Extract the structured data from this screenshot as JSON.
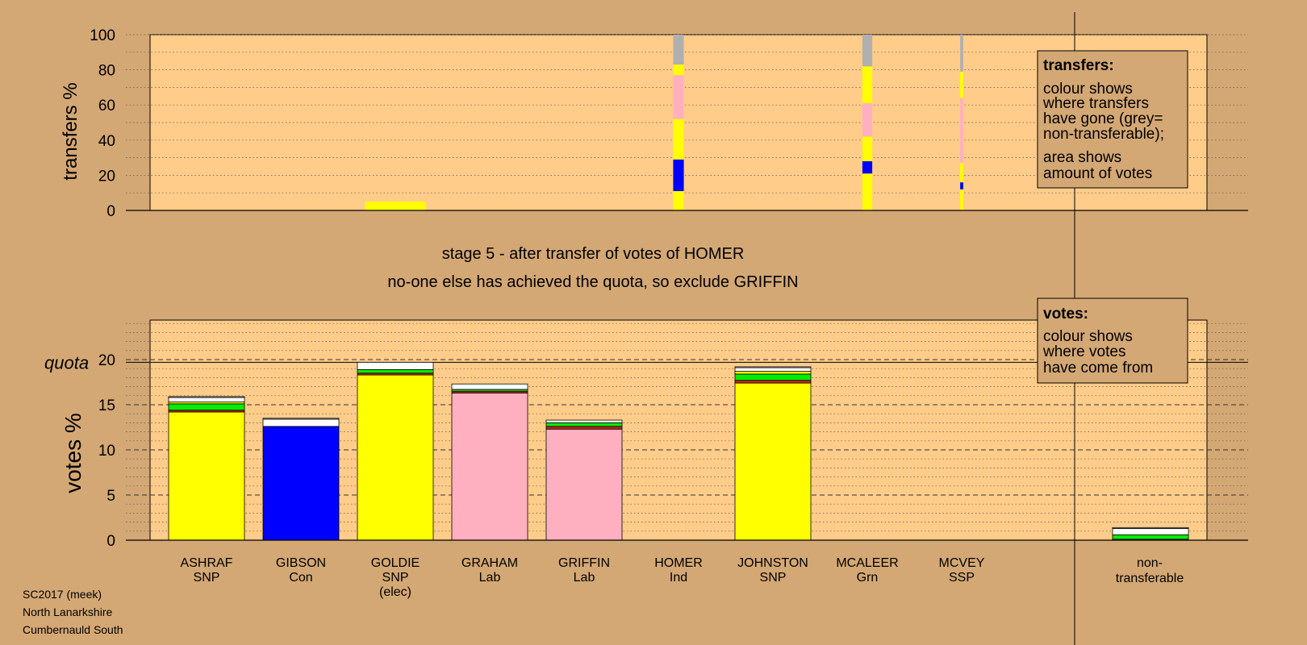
{
  "top_chart": {
    "ylabel": "transfers %",
    "ticks": [
      "0",
      "20",
      "40",
      "60",
      "80",
      "100"
    ],
    "legend": {
      "title": "transfers:",
      "lines1": [
        "colour shows",
        "where transfers",
        "have gone (grey=",
        "non-transferable);"
      ],
      "lines2": [
        "area shows",
        "amount of votes"
      ]
    }
  },
  "stage": {
    "line1": "stage 5 - after transfer of votes of HOMER",
    "line2": "no-one else has achieved the quota, so exclude GRIFFIN"
  },
  "bottom_chart": {
    "ylabel": "votes %",
    "quota_label": "quota",
    "ticks": [
      "0",
      "5",
      "10",
      "15",
      "20"
    ],
    "legend": {
      "title": "votes:",
      "lines": [
        "colour shows",
        "where votes",
        "have come from"
      ]
    }
  },
  "candidates": [
    {
      "name": "ASHRAF",
      "party": "SNP",
      "extra": ""
    },
    {
      "name": "GIBSON",
      "party": "Con",
      "extra": ""
    },
    {
      "name": "GOLDIE",
      "party": "SNP",
      "extra": "(elec)"
    },
    {
      "name": "GRAHAM",
      "party": "Lab",
      "extra": ""
    },
    {
      "name": "GRIFFIN",
      "party": "Lab",
      "extra": ""
    },
    {
      "name": "HOMER",
      "party": "Ind",
      "extra": ""
    },
    {
      "name": "JOHNSTON",
      "party": "SNP",
      "extra": ""
    },
    {
      "name": "MCALEER",
      "party": "Grn",
      "extra": ""
    },
    {
      "name": "MCVEY",
      "party": "SSP",
      "extra": ""
    }
  ],
  "nontransferable_label": [
    "non-",
    "transferable"
  ],
  "footer": [
    "SC2017 (meek)",
    "North Lanarkshire",
    "Cumbernauld South"
  ],
  "colors": {
    "background": "#d4a874",
    "plot": "#ffcc8a",
    "SNP": "#ffff00",
    "Con": "#0000ff",
    "Lab": "#ffb0c0",
    "Grn": "#00ee00",
    "Ind": "#d02020",
    "SSP": "#ffffff",
    "nontransferable": "#b0b0b0",
    "later": "#ffffff"
  },
  "chart_data": [
    {
      "type": "bar",
      "title": "",
      "ylabel": "transfers %",
      "ylim": [
        0,
        100
      ],
      "note": "stacked transfer bars; bar width proportional to votes transferred",
      "bars": [
        {
          "candidate": "GOLDIE",
          "width_rel": 0.8,
          "segments": [
            {
              "to": "SNP",
              "from": 0,
              "to_value": 5
            }
          ]
        },
        {
          "candidate": "HOMER",
          "width_rel": 0.14,
          "segments": [
            {
              "to": "SNP",
              "from": 0,
              "to_value": 11
            },
            {
              "to": "Con",
              "from": 11,
              "to_value": 29
            },
            {
              "to": "SNP",
              "from": 29,
              "to_value": 52
            },
            {
              "to": "Lab",
              "from": 52,
              "to_value": 77
            },
            {
              "to": "SNP",
              "from": 77,
              "to_value": 83
            },
            {
              "to": "nontransferable",
              "from": 83,
              "to_value": 100
            }
          ]
        },
        {
          "candidate": "MCALEER",
          "width_rel": 0.13,
          "segments": [
            {
              "to": "SNP",
              "from": 0,
              "to_value": 21
            },
            {
              "to": "Con",
              "from": 21,
              "to_value": 28
            },
            {
              "to": "SNP",
              "from": 28,
              "to_value": 42
            },
            {
              "to": "Lab",
              "from": 42,
              "to_value": 61
            },
            {
              "to": "SNP",
              "from": 61,
              "to_value": 82
            },
            {
              "to": "nontransferable",
              "from": 82,
              "to_value": 100
            }
          ]
        },
        {
          "candidate": "MCVEY",
          "width_rel": 0.04,
          "segments": [
            {
              "to": "SNP",
              "from": 0,
              "to_value": 12
            },
            {
              "to": "Con",
              "from": 12,
              "to_value": 16
            },
            {
              "to": "SNP",
              "from": 16,
              "to_value": 27
            },
            {
              "to": "Lab",
              "from": 27,
              "to_value": 64
            },
            {
              "to": "SNP",
              "from": 64,
              "to_value": 79
            },
            {
              "to": "nontransferable",
              "from": 79,
              "to_value": 100
            }
          ]
        }
      ]
    },
    {
      "type": "bar",
      "title": "",
      "ylabel": "votes %",
      "ylim": [
        0,
        25
      ],
      "quota": 19.7,
      "categories": [
        "ASHRAF",
        "GIBSON",
        "GOLDIE",
        "GRAHAM",
        "GRIFFIN",
        "HOMER",
        "JOHNSTON",
        "MCALEER",
        "MCVEY",
        "non-transferable"
      ],
      "stacks": [
        [
          {
            "src": "SNP",
            "v": 14.2
          },
          {
            "src": "Ind",
            "v": 0.2
          },
          {
            "src": "Grn",
            "v": 0.7
          },
          {
            "src": "SNP",
            "v": 0.2
          },
          {
            "src": "later",
            "v": 0.5
          },
          {
            "src": "SSP",
            "v": 0.1
          }
        ],
        [
          {
            "src": "Con",
            "v": 12.6
          },
          {
            "src": "later",
            "v": 0.8
          },
          {
            "src": "SSP",
            "v": 0.1
          }
        ],
        [
          {
            "src": "SNP",
            "v": 18.3
          },
          {
            "src": "Ind",
            "v": 0.2
          },
          {
            "src": "Grn",
            "v": 0.4
          },
          {
            "src": "later",
            "v": 0.8
          }
        ],
        [
          {
            "src": "Lab",
            "v": 16.3
          },
          {
            "src": "Ind",
            "v": 0.2
          },
          {
            "src": "Grn",
            "v": 0.2
          },
          {
            "src": "later",
            "v": 0.6
          }
        ],
        [
          {
            "src": "Lab",
            "v": 12.3
          },
          {
            "src": "Ind",
            "v": 0.3
          },
          {
            "src": "Grn",
            "v": 0.4
          },
          {
            "src": "later",
            "v": 0.3
          }
        ],
        [],
        [
          {
            "src": "SNP",
            "v": 17.4
          },
          {
            "src": "Ind",
            "v": 0.3
          },
          {
            "src": "Grn",
            "v": 0.7
          },
          {
            "src": "SNP",
            "v": 0.3
          },
          {
            "src": "later",
            "v": 0.4
          },
          {
            "src": "SSP",
            "v": 0.1
          }
        ],
        [],
        [],
        [
          {
            "src": "Ind",
            "v": 0.1
          },
          {
            "src": "Grn",
            "v": 0.5
          },
          {
            "src": "later",
            "v": 0.7
          },
          {
            "src": "SSP",
            "v": 0.1
          }
        ]
      ]
    }
  ]
}
